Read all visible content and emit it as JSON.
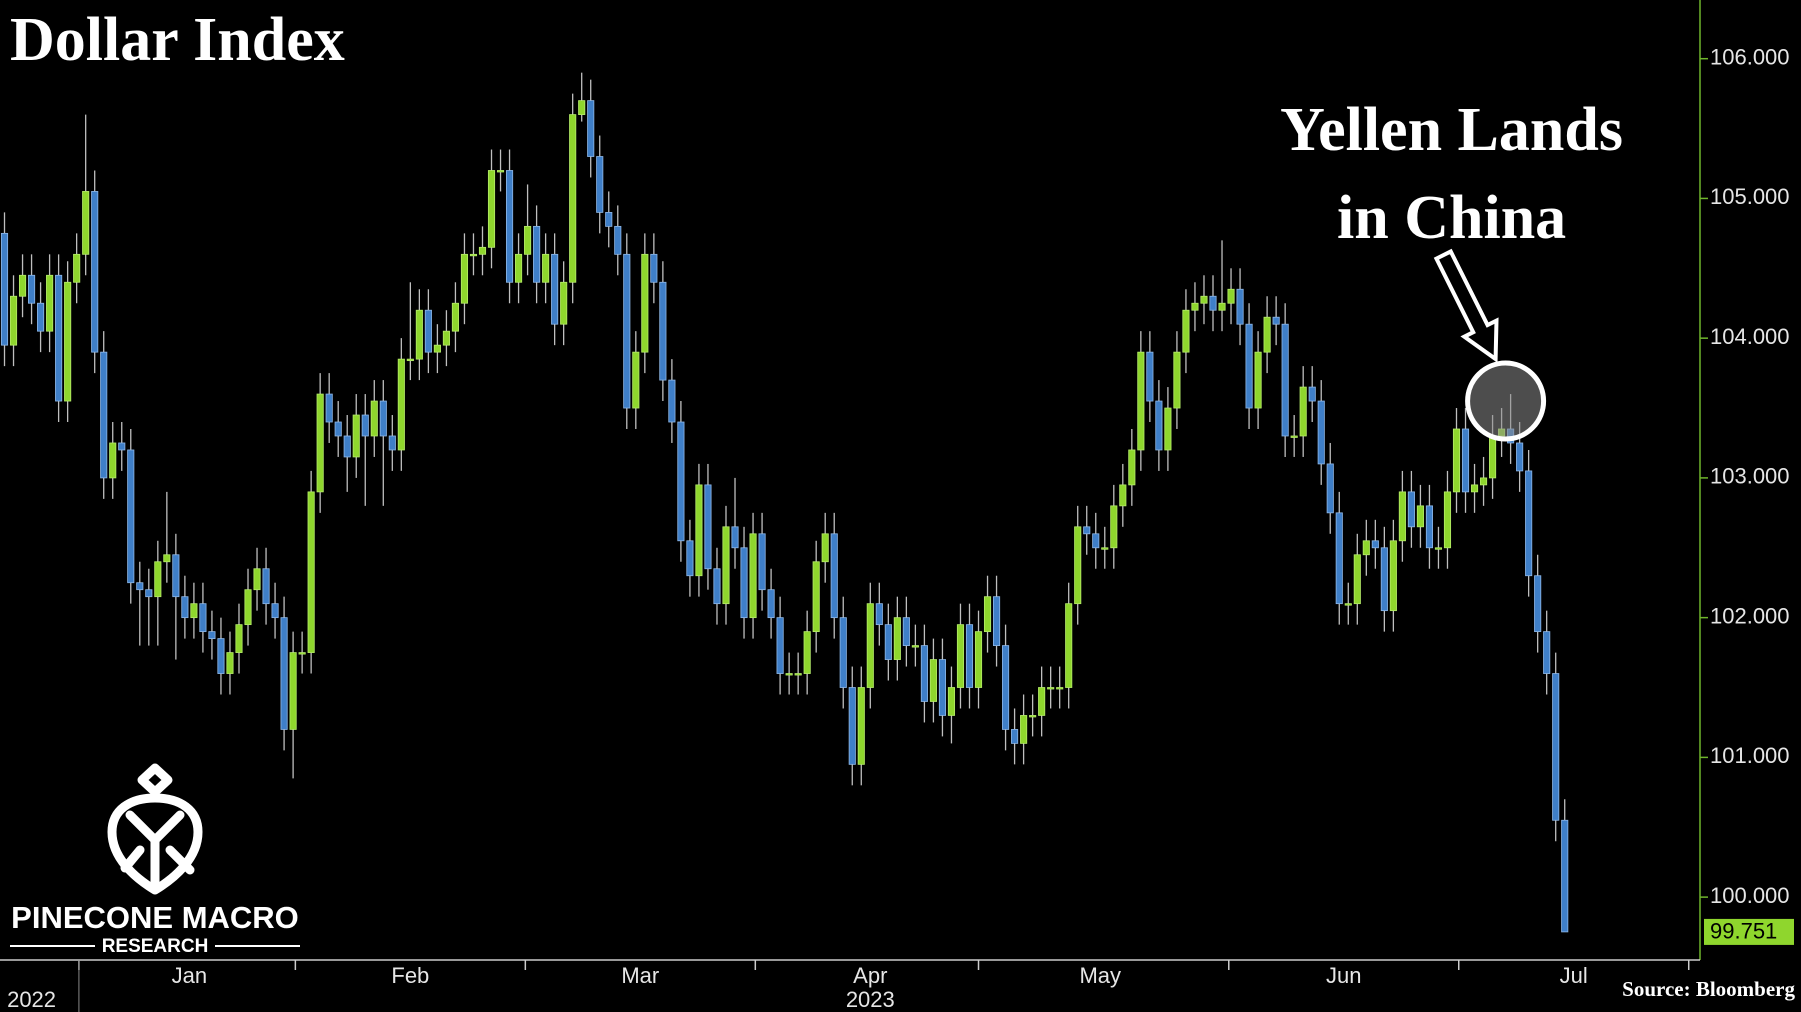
{
  "chart_data": {
    "type": "candlestick",
    "title": "Dollar Index",
    "annotation": {
      "lines": [
        "Yellen Lands",
        "in China"
      ],
      "x": 166,
      "y": 103.55
    },
    "source": "Source: Bloomberg",
    "logo": {
      "name": "PINECONE MACRO",
      "tagline": "RESEARCH"
    },
    "up_color": "#8fd62d",
    "down_color": "#3f7fc8",
    "xlim": [
      -0.5,
      188
    ],
    "xticks": [
      {
        "value": 20.5,
        "label": "Jan"
      },
      {
        "value": 45,
        "label": "Feb"
      },
      {
        "value": 70.5,
        "label": "Mar"
      },
      {
        "value": 96,
        "label": "Apr"
      },
      {
        "value": 121.5,
        "label": "May"
      },
      {
        "value": 148.5,
        "label": "Jun"
      },
      {
        "value": 174,
        "label": "Jul"
      }
    ],
    "year_labels": [
      {
        "value": 3,
        "label": "2022"
      },
      {
        "value": 96,
        "label": "2023"
      }
    ],
    "ylim": [
      99.55,
      106.42
    ],
    "yticks": [
      {
        "value": 100,
        "label": "100.000"
      },
      {
        "value": 101,
        "label": "101.000"
      },
      {
        "value": 102,
        "label": "102.000"
      },
      {
        "value": 103,
        "label": "103.000"
      },
      {
        "value": 104,
        "label": "104.000"
      },
      {
        "value": 105,
        "label": "105.000"
      },
      {
        "value": 106,
        "label": "106.000"
      }
    ],
    "last_value_label": "99.751",
    "open": [
      104.75,
      103.95,
      104.3,
      104.45,
      104.25,
      104.05,
      104.45,
      103.55,
      104.4,
      104.6,
      105.05,
      103.9,
      103.0,
      103.25,
      103.2,
      102.25,
      102.2,
      102.15,
      102.4,
      102.45,
      102.15,
      102.0,
      102.1,
      101.9,
      101.85,
      101.6,
      101.75,
      101.95,
      102.2,
      102.35,
      102.1,
      102.0,
      101.2,
      101.75,
      101.75,
      102.9,
      103.6,
      103.4,
      103.3,
      103.15,
      103.45,
      103.3,
      103.55,
      103.3,
      103.2,
      103.85,
      103.85,
      104.2,
      103.9,
      103.95,
      104.05,
      104.25,
      104.6,
      104.6,
      104.65,
      105.2,
      105.2,
      104.4,
      104.6,
      104.8,
      104.4,
      104.6,
      104.1,
      104.4,
      105.6,
      105.7,
      105.3,
      104.9,
      104.8,
      104.6,
      103.5,
      103.9,
      104.6,
      104.4,
      103.7,
      103.4,
      102.55,
      102.3,
      102.95,
      102.35,
      102.1,
      102.65,
      102.5,
      102.0,
      102.6,
      102.2,
      102.0,
      101.6,
      101.6,
      101.6,
      101.9,
      102.4,
      102.6,
      102.0,
      101.5,
      100.95,
      101.5,
      102.1,
      101.95,
      101.7,
      102.0,
      101.8,
      101.8,
      101.4,
      101.7,
      101.3,
      101.5,
      101.95,
      101.5,
      101.9,
      102.15,
      101.8,
      101.2,
      101.1,
      101.3,
      101.3,
      101.5,
      101.5,
      101.5,
      102.1,
      102.65,
      102.6,
      102.5,
      102.5,
      102.8,
      102.95,
      103.2,
      103.9,
      103.55,
      103.2,
      103.5,
      103.9,
      104.2,
      104.25,
      104.3,
      104.2,
      104.25,
      104.35,
      104.1,
      103.5,
      103.9,
      104.15,
      104.1,
      103.3,
      103.3,
      103.65,
      103.55,
      103.1,
      102.75,
      102.1,
      102.1,
      102.45,
      102.55,
      102.5,
      102.05,
      102.55,
      102.9,
      102.65,
      102.8,
      102.5,
      102.5,
      102.9,
      103.35,
      102.9,
      102.95,
      103.0,
      103.3,
      103.35,
      103.25,
      103.05,
      102.3,
      101.9,
      101.6,
      100.55
    ],
    "high": [
      104.9,
      104.45,
      104.6,
      104.6,
      104.4,
      104.6,
      104.6,
      104.55,
      104.75,
      105.6,
      105.2,
      104.05,
      103.4,
      103.4,
      103.35,
      102.4,
      102.35,
      102.55,
      102.9,
      102.6,
      102.3,
      102.25,
      102.25,
      102.05,
      102.0,
      101.9,
      102.1,
      102.35,
      102.5,
      102.5,
      102.25,
      102.15,
      101.9,
      101.9,
      103.05,
      103.75,
      103.75,
      103.55,
      103.45,
      103.6,
      103.6,
      103.7,
      103.7,
      103.45,
      104.0,
      104.4,
      104.35,
      104.35,
      104.1,
      104.2,
      104.4,
      104.75,
      104.75,
      104.8,
      105.35,
      105.35,
      105.35,
      104.75,
      105.1,
      104.95,
      104.75,
      104.75,
      104.55,
      105.75,
      105.9,
      105.85,
      105.45,
      105.05,
      104.95,
      104.75,
      104.05,
      104.75,
      104.75,
      104.55,
      103.85,
      103.55,
      102.7,
      103.1,
      103.1,
      102.5,
      102.8,
      103.0,
      102.65,
      102.75,
      102.75,
      102.35,
      102.15,
      101.75,
      101.75,
      102.05,
      102.55,
      102.75,
      102.75,
      102.15,
      101.65,
      101.65,
      102.25,
      102.25,
      102.1,
      102.15,
      102.15,
      101.95,
      101.95,
      101.85,
      101.85,
      101.65,
      102.1,
      102.1,
      102.05,
      102.3,
      102.3,
      101.95,
      101.35,
      101.45,
      101.45,
      101.65,
      101.65,
      101.65,
      102.25,
      102.8,
      102.8,
      102.75,
      102.65,
      102.95,
      103.1,
      103.35,
      104.05,
      104.05,
      103.7,
      103.65,
      104.05,
      104.35,
      104.4,
      104.45,
      104.45,
      104.7,
      104.5,
      104.5,
      104.25,
      104.05,
      104.3,
      104.3,
      104.25,
      103.45,
      103.8,
      103.8,
      103.7,
      103.25,
      102.9,
      102.25,
      102.6,
      102.7,
      102.7,
      102.65,
      102.7,
      103.05,
      103.05,
      102.95,
      102.95,
      102.65,
      103.05,
      103.5,
      103.5,
      103.1,
      103.15,
      103.45,
      103.5,
      103.6,
      103.4,
      103.2,
      102.45,
      102.05,
      101.75,
      100.7
    ],
    "low": [
      103.8,
      103.8,
      104.15,
      104.1,
      103.9,
      103.9,
      103.4,
      103.4,
      104.25,
      104.45,
      103.75,
      102.85,
      102.85,
      103.05,
      102.1,
      101.8,
      101.8,
      101.8,
      102.25,
      101.7,
      101.85,
      101.85,
      101.75,
      101.7,
      101.45,
      101.45,
      101.6,
      101.8,
      102.05,
      101.95,
      101.85,
      101.05,
      100.85,
      101.6,
      101.6,
      102.75,
      103.25,
      103.15,
      102.9,
      103.0,
      102.8,
      103.15,
      102.8,
      103.05,
      103.05,
      103.7,
      103.7,
      103.75,
      103.75,
      103.8,
      103.9,
      104.1,
      104.45,
      104.45,
      104.5,
      105.05,
      104.25,
      104.25,
      104.45,
      104.25,
      104.25,
      103.95,
      103.95,
      104.25,
      105.55,
      105.15,
      104.75,
      104.65,
      104.45,
      103.35,
      103.35,
      103.75,
      104.25,
      103.55,
      103.25,
      102.4,
      102.15,
      102.15,
      102.2,
      101.95,
      101.95,
      102.35,
      101.85,
      101.85,
      102.05,
      101.85,
      101.45,
      101.45,
      101.45,
      101.45,
      101.75,
      102.25,
      101.85,
      101.35,
      100.8,
      100.8,
      101.35,
      101.8,
      101.55,
      101.55,
      101.65,
      101.65,
      101.25,
      101.25,
      101.15,
      101.1,
      101.35,
      101.35,
      101.35,
      101.75,
      101.65,
      101.05,
      100.95,
      100.95,
      101.15,
      101.15,
      101.35,
      101.35,
      101.35,
      101.95,
      102.45,
      102.35,
      102.35,
      102.35,
      102.65,
      102.8,
      103.05,
      103.4,
      103.05,
      103.05,
      103.35,
      103.75,
      104.05,
      104.1,
      104.05,
      104.05,
      104.1,
      103.95,
      103.35,
      103.35,
      103.75,
      103.95,
      103.15,
      103.15,
      103.15,
      103.4,
      102.95,
      102.6,
      101.95,
      101.95,
      101.95,
      102.3,
      102.35,
      101.9,
      101.9,
      102.4,
      102.5,
      102.5,
      102.35,
      102.35,
      102.35,
      102.75,
      102.75,
      102.75,
      102.8,
      102.85,
      103.15,
      103.1,
      102.9,
      102.15,
      101.75,
      101.45,
      100.4,
      99.751
    ],
    "close": [
      103.95,
      104.3,
      104.45,
      104.25,
      104.05,
      104.45,
      103.55,
      104.4,
      104.6,
      105.05,
      103.9,
      103.0,
      103.25,
      103.2,
      102.25,
      102.2,
      102.15,
      102.4,
      102.45,
      102.15,
      102.0,
      102.1,
      101.9,
      101.85,
      101.6,
      101.75,
      101.95,
      102.2,
      102.35,
      102.1,
      102.0,
      101.2,
      101.75,
      101.75,
      102.9,
      103.6,
      103.4,
      103.3,
      103.15,
      103.45,
      103.3,
      103.55,
      103.3,
      103.2,
      103.85,
      103.85,
      104.2,
      103.9,
      103.95,
      104.05,
      104.25,
      104.6,
      104.6,
      104.65,
      105.2,
      105.2,
      104.4,
      104.6,
      104.8,
      104.4,
      104.6,
      104.1,
      104.4,
      105.6,
      105.7,
      105.3,
      104.9,
      104.8,
      104.6,
      103.5,
      103.9,
      104.6,
      104.4,
      103.7,
      103.4,
      102.55,
      102.3,
      102.95,
      102.35,
      102.1,
      102.65,
      102.5,
      102.0,
      102.6,
      102.2,
      102.0,
      101.6,
      101.6,
      101.6,
      101.9,
      102.4,
      102.6,
      102.0,
      101.5,
      100.95,
      101.5,
      102.1,
      101.95,
      101.7,
      102.0,
      101.8,
      101.8,
      101.4,
      101.7,
      101.3,
      101.5,
      101.95,
      101.5,
      101.9,
      102.15,
      101.8,
      101.2,
      101.1,
      101.3,
      101.3,
      101.5,
      101.5,
      101.5,
      102.1,
      102.65,
      102.6,
      102.5,
      102.5,
      102.8,
      102.95,
      103.2,
      103.9,
      103.55,
      103.2,
      103.5,
      103.9,
      104.2,
      104.25,
      104.3,
      104.2,
      104.25,
      104.35,
      104.1,
      103.5,
      103.9,
      104.15,
      104.1,
      103.3,
      103.3,
      103.65,
      103.55,
      103.1,
      102.75,
      102.1,
      102.1,
      102.45,
      102.55,
      102.5,
      102.05,
      102.55,
      102.9,
      102.65,
      102.8,
      102.5,
      102.5,
      102.9,
      103.35,
      102.9,
      102.95,
      103.0,
      103.3,
      103.35,
      103.25,
      103.05,
      102.3,
      101.9,
      101.6,
      100.55,
      99.751
    ]
  }
}
